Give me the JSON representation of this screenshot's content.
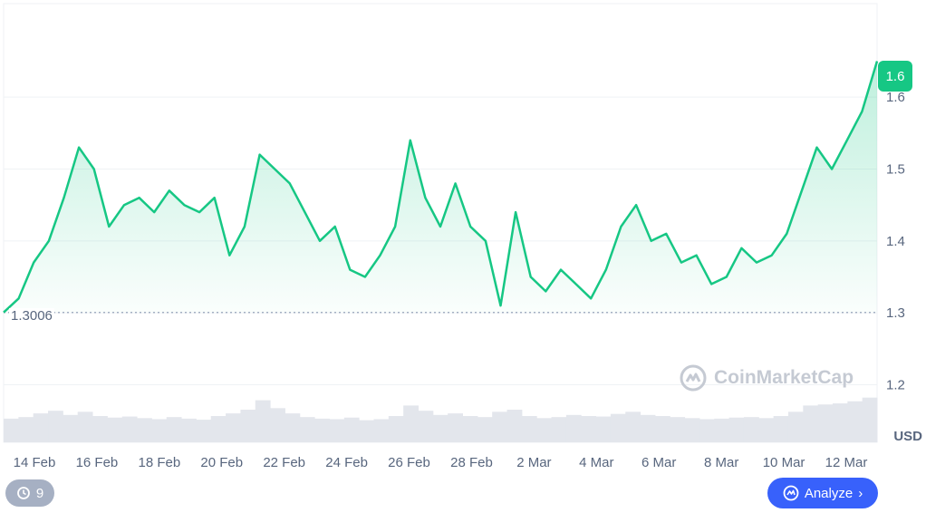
{
  "chart_data": {
    "type": "line",
    "currency": "USD",
    "open_price_label": "1.3006",
    "current_price_label": "1.6",
    "ylim": [
      1.12,
      1.73
    ],
    "y_ticks": [
      {
        "value": 1.2,
        "label": "1.2"
      },
      {
        "value": 1.3,
        "label": "1.3"
      },
      {
        "value": 1.4,
        "label": "1.4"
      },
      {
        "value": 1.5,
        "label": "1.5"
      },
      {
        "value": 1.6,
        "label": "1.6"
      }
    ],
    "x_ticks": [
      "14 Feb",
      "16 Feb",
      "18 Feb",
      "20 Feb",
      "22 Feb",
      "24 Feb",
      "26 Feb",
      "28 Feb",
      "2 Mar",
      "4 Mar",
      "6 Mar",
      "8 Mar",
      "10 Mar",
      "12 Mar"
    ],
    "series": [
      {
        "x": [
          "2024-02-13",
          "2024-02-13T12:00",
          "2024-02-14",
          "2024-02-14T12:00",
          "2024-02-15",
          "2024-02-15T12:00",
          "2024-02-16",
          "2024-02-16T12:00",
          "2024-02-17",
          "2024-02-17T12:00",
          "2024-02-18",
          "2024-02-18T12:00",
          "2024-02-19",
          "2024-02-19T12:00",
          "2024-02-20",
          "2024-02-20T12:00",
          "2024-02-21",
          "2024-02-21T12:00",
          "2024-02-22",
          "2024-02-22T12:00",
          "2024-02-23",
          "2024-02-23T12:00",
          "2024-02-24",
          "2024-02-24T12:00",
          "2024-02-25",
          "2024-02-25T12:00",
          "2024-02-26",
          "2024-02-26T12:00",
          "2024-02-27",
          "2024-02-27T12:00",
          "2024-02-28",
          "2024-02-28T12:00",
          "2024-02-29",
          "2024-02-29T12:00",
          "2024-03-01",
          "2024-03-01T12:00",
          "2024-03-02",
          "2024-03-02T12:00",
          "2024-03-03",
          "2024-03-03T12:00",
          "2024-03-04",
          "2024-03-04T12:00",
          "2024-03-05",
          "2024-03-05T12:00",
          "2024-03-06",
          "2024-03-06T12:00",
          "2024-03-07",
          "2024-03-07T12:00",
          "2024-03-08",
          "2024-03-08T12:00",
          "2024-03-09",
          "2024-03-09T12:00",
          "2024-03-10",
          "2024-03-10T12:00",
          "2024-03-11",
          "2024-03-11T12:00",
          "2024-03-12",
          "2024-03-12T12:00",
          "2024-03-13"
        ],
        "values": [
          1.3006,
          1.32,
          1.37,
          1.4,
          1.46,
          1.53,
          1.5,
          1.42,
          1.45,
          1.46,
          1.44,
          1.47,
          1.45,
          1.44,
          1.46,
          1.38,
          1.42,
          1.52,
          1.5,
          1.48,
          1.44,
          1.4,
          1.42,
          1.36,
          1.35,
          1.38,
          1.42,
          1.54,
          1.46,
          1.42,
          1.48,
          1.42,
          1.4,
          1.31,
          1.44,
          1.35,
          1.33,
          1.36,
          1.34,
          1.32,
          1.36,
          1.42,
          1.45,
          1.4,
          1.41,
          1.37,
          1.38,
          1.34,
          1.35,
          1.39,
          1.37,
          1.38,
          1.41,
          1.47,
          1.53,
          1.5,
          1.54,
          1.58,
          1.65
        ]
      }
    ],
    "volume": [
      0.45,
      0.48,
      0.55,
      0.6,
      0.52,
      0.58,
      0.5,
      0.47,
      0.49,
      0.46,
      0.44,
      0.48,
      0.45,
      0.43,
      0.5,
      0.55,
      0.62,
      0.8,
      0.65,
      0.55,
      0.48,
      0.45,
      0.44,
      0.47,
      0.42,
      0.44,
      0.5,
      0.7,
      0.6,
      0.52,
      0.55,
      0.5,
      0.48,
      0.58,
      0.62,
      0.5,
      0.46,
      0.48,
      0.52,
      0.5,
      0.49,
      0.54,
      0.58,
      0.52,
      0.5,
      0.48,
      0.46,
      0.44,
      0.45,
      0.47,
      0.48,
      0.46,
      0.5,
      0.58,
      0.7,
      0.72,
      0.74,
      0.78,
      0.85
    ],
    "colors": {
      "line": "#16c784",
      "down": "#ea3943",
      "grid": "#eff2f5",
      "axis_text": "#58667e",
      "volume": "#e3e6ec"
    }
  },
  "watermark": "CoinMarketCap",
  "controls": {
    "history_count": "9",
    "analyze_label": "Analyze"
  }
}
